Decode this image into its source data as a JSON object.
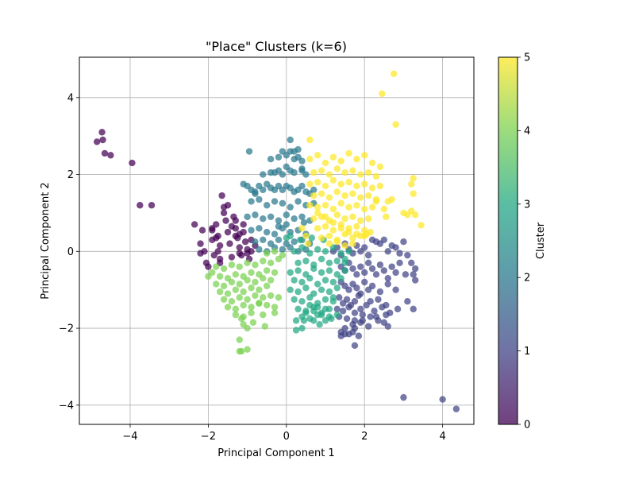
{
  "chart_data": {
    "type": "scatter",
    "title": "\"Place\" Clusters (k=6)",
    "xlabel": "Principal Component 1",
    "ylabel": "Principal Component 2",
    "xlim": [
      -5.3,
      4.8
    ],
    "ylim": [
      -4.5,
      5.05
    ],
    "x_ticks": [
      -4,
      -2,
      0,
      2,
      4
    ],
    "y_ticks": [
      -4,
      -2,
      0,
      2,
      4
    ],
    "grid": true,
    "colorbar": {
      "label": "Cluster",
      "range": [
        0,
        5
      ],
      "ticks": [
        0,
        1,
        2,
        3,
        4,
        5
      ],
      "colormap": "viridis"
    },
    "cluster_colors": [
      "#440154",
      "#414487",
      "#2a788e",
      "#22a884",
      "#7ad151",
      "#fde725"
    ],
    "series": [
      {
        "cluster": 0,
        "x": [
          -4.85,
          -4.72,
          -4.7,
          -4.65,
          -4.5,
          -3.95,
          -3.75,
          -3.45,
          -2.35,
          -2.2,
          -2.1,
          -2.05,
          -2.0,
          -2.2,
          -2.15,
          -1.9,
          -1.9,
          -1.85,
          -1.8,
          -1.75,
          -1.75,
          -1.7,
          -1.7,
          -1.65,
          -1.6,
          -1.55,
          -1.5,
          -1.45,
          -1.4,
          -1.35,
          -1.3,
          -1.25,
          -1.2,
          -1.15,
          -1.1,
          -1.05,
          -1.0,
          -0.95,
          -0.9,
          -0.8,
          -1.6,
          -1.5,
          -1.4,
          -1.3,
          -1.2,
          -1.1,
          -1.9,
          -1.8,
          -1.7,
          -1.3,
          -1.2,
          -1.0,
          -0.9
        ],
        "y": [
          2.85,
          3.1,
          2.9,
          2.55,
          2.5,
          2.3,
          1.2,
          1.2,
          0.7,
          0.2,
          0.0,
          -0.3,
          -0.4,
          -0.05,
          0.55,
          0.6,
          0.3,
          -0.1,
          0.7,
          0.4,
          0.0,
          -0.2,
          -0.3,
          1.45,
          1.0,
          0.8,
          0.5,
          0.2,
          -0.15,
          0.9,
          0.6,
          0.35,
          0.1,
          -0.1,
          0.5,
          0.25,
          0.05,
          -0.2,
          0.3,
          0.15,
          1.15,
          1.2,
          0.65,
          0.8,
          -0.05,
          0.7,
          0.55,
          0.35,
          0.15,
          0.4,
          0.45,
          -0.05,
          0.0
        ]
      },
      {
        "cluster": 1,
        "x": [
          1.2,
          1.3,
          1.4,
          1.5,
          1.6,
          1.7,
          1.8,
          1.9,
          2.0,
          2.1,
          2.2,
          2.3,
          2.4,
          2.5,
          2.6,
          2.7,
          2.8,
          2.9,
          3.0,
          3.1,
          3.2,
          3.3,
          1.4,
          1.5,
          1.6,
          1.7,
          1.8,
          1.9,
          2.0,
          2.1,
          2.2,
          2.3,
          2.4,
          2.5,
          2.6,
          2.7,
          2.8,
          2.9,
          1.4,
          1.5,
          1.6,
          1.7,
          1.8,
          1.9,
          2.0,
          2.1,
          2.2,
          2.4,
          2.6,
          2.8,
          1.35,
          1.45,
          1.55,
          1.65,
          1.75,
          1.85,
          2.15,
          2.35,
          2.55,
          1.3,
          1.45,
          1.6,
          1.75,
          1.9,
          2.05,
          2.25,
          2.45,
          2.65,
          2.85,
          1.35,
          1.55,
          1.75,
          1.95,
          2.15,
          2.35,
          2.55,
          1.5,
          1.7,
          1.9,
          2.1,
          2.3,
          2.5,
          1.4,
          1.6,
          1.85,
          2.6,
          3.05,
          3.1,
          3.25,
          3.3,
          3.25,
          1.4,
          1.75,
          1.95,
          1.75,
          1.7,
          1.5,
          3.0,
          4.0,
          4.35
        ],
        "y": [
          0.0,
          0.1,
          -0.1,
          0.2,
          0.05,
          -0.05,
          0.15,
          0.0,
          0.1,
          -0.1,
          0.3,
          0.25,
          0.2,
          0.3,
          0.0,
          0.15,
          0.1,
          -0.05,
          0.25,
          -0.1,
          -0.3,
          -0.45,
          -0.4,
          -0.5,
          -0.3,
          -0.45,
          -0.6,
          -0.4,
          -0.55,
          -0.3,
          -0.45,
          -0.6,
          -0.35,
          -0.5,
          -0.7,
          -0.4,
          -0.55,
          -0.3,
          -0.8,
          -0.9,
          -1.0,
          -0.85,
          -0.95,
          -1.1,
          -0.8,
          -1.0,
          -0.9,
          -1.05,
          -0.85,
          -1.0,
          -1.2,
          -1.35,
          -1.25,
          -1.4,
          -1.3,
          -1.15,
          -1.3,
          -1.25,
          -1.4,
          -1.5,
          -1.55,
          -1.45,
          -1.6,
          -1.5,
          -1.4,
          -1.55,
          -1.45,
          -1.6,
          -1.5,
          -1.7,
          -1.75,
          -1.8,
          -1.65,
          -1.7,
          -1.8,
          -1.65,
          -2.0,
          -1.9,
          -1.85,
          -1.95,
          -1.7,
          -1.85,
          -2.1,
          -2.15,
          -2.2,
          -1.95,
          -0.6,
          -1.3,
          -0.6,
          -0.75,
          -1.5,
          -2.2,
          -2.0,
          -1.8,
          -2.45,
          -2.1,
          -2.15,
          -3.8,
          -3.85,
          -4.1
        ]
      },
      {
        "cluster": 2,
        "x": [
          -1.1,
          -1.0,
          -0.9,
          -0.8,
          -0.7,
          -0.6,
          -0.5,
          -0.4,
          -0.3,
          -0.2,
          -0.1,
          0.0,
          0.1,
          0.2,
          0.3,
          0.4,
          0.5,
          0.6,
          0.7,
          -0.9,
          -0.7,
          -0.5,
          -0.3,
          -0.1,
          0.1,
          0.3,
          0.5,
          0.7,
          -1.0,
          -0.8,
          -0.6,
          -0.4,
          -0.2,
          0.0,
          0.2,
          0.4,
          0.6,
          -0.9,
          -0.7,
          -0.5,
          -0.3,
          -0.1,
          0.1,
          0.3,
          0.5,
          -0.8,
          -0.6,
          -0.4,
          -0.2,
          0.0,
          0.2,
          0.4,
          0.6,
          -0.7,
          -0.5,
          -0.3,
          -0.1,
          0.1,
          0.3,
          0.5,
          -0.6,
          -0.4,
          -0.2,
          0.0,
          0.2,
          0.4,
          -0.4,
          -0.2,
          0.0,
          0.2,
          0.4,
          -0.1,
          0.1,
          0.3,
          -0.3,
          -0.1,
          0.1,
          -0.95,
          0.1,
          0.2,
          0.3,
          0.4,
          0.5,
          -0.2,
          0.0,
          0.45,
          -0.8
        ],
        "y": [
          1.75,
          1.7,
          1.6,
          1.55,
          1.7,
          1.6,
          1.75,
          1.65,
          1.6,
          1.7,
          1.6,
          1.7,
          1.65,
          1.55,
          1.6,
          1.7,
          1.55,
          1.5,
          1.6,
          1.3,
          1.35,
          1.2,
          1.3,
          1.25,
          1.15,
          1.3,
          1.2,
          1.25,
          0.9,
          0.95,
          0.85,
          0.9,
          0.8,
          0.95,
          0.85,
          0.9,
          0.8,
          0.55,
          0.6,
          0.5,
          0.45,
          0.6,
          0.5,
          0.55,
          0.45,
          0.25,
          0.3,
          0.2,
          0.3,
          0.2,
          0.25,
          0.3,
          0.2,
          0.05,
          0.0,
          0.1,
          0.05,
          0.1,
          0.0,
          0.05,
          2.0,
          2.05,
          2.1,
          2.2,
          2.05,
          2.15,
          2.4,
          2.45,
          2.5,
          2.4,
          2.35,
          2.6,
          2.6,
          2.65,
          2.05,
          2.0,
          2.1,
          2.6,
          2.9,
          2.6,
          2.45,
          2.1,
          2.0,
          0.65,
          0.7,
          0.75,
          1.5
        ]
      },
      {
        "cluster": 3,
        "x": [
          0.2,
          0.4,
          0.6,
          0.8,
          1.0,
          1.2,
          1.4,
          1.6,
          0.3,
          0.5,
          0.7,
          0.9,
          1.1,
          1.3,
          1.5,
          0.1,
          0.3,
          0.5,
          0.7,
          0.9,
          1.1,
          1.3,
          1.5,
          0.2,
          0.4,
          0.6,
          0.8,
          1.0,
          1.2,
          1.4,
          0.1,
          0.3,
          0.5,
          0.7,
          0.9,
          1.1,
          1.3,
          0.2,
          0.4,
          0.6,
          0.8,
          1.0,
          1.2,
          0.3,
          0.5,
          0.7,
          0.9,
          1.1,
          0.4,
          0.6,
          0.8,
          1.0,
          0.5,
          0.7,
          0.9,
          1.1,
          0.6,
          0.8,
          1.0,
          0.0,
          0.1,
          0.35,
          0.65,
          0.95,
          0.25,
          0.45,
          0.25,
          0.4,
          1.15,
          0.85,
          1.2,
          1.5,
          0.7,
          1.3
        ],
        "y": [
          0.0,
          0.1,
          -0.05,
          0.05,
          0.0,
          0.1,
          -0.05,
          0.0,
          -0.3,
          -0.25,
          -0.35,
          -0.2,
          -0.3,
          -0.25,
          -0.3,
          -0.55,
          -0.5,
          -0.6,
          -0.45,
          -0.55,
          -0.5,
          -0.6,
          -0.5,
          -0.75,
          -0.8,
          -0.7,
          -0.85,
          -0.75,
          -0.8,
          -0.7,
          -1.0,
          -1.05,
          -0.95,
          -1.1,
          -1.0,
          -1.05,
          -0.95,
          -1.25,
          -1.3,
          -1.2,
          -1.35,
          -1.25,
          -1.3,
          -1.5,
          -1.55,
          -1.45,
          -1.6,
          -1.5,
          -1.7,
          -1.75,
          -1.65,
          -1.8,
          -1.6,
          -1.55,
          -1.65,
          -1.7,
          -1.4,
          -1.45,
          -1.5,
          0.35,
          0.4,
          0.3,
          0.35,
          0.3,
          -1.8,
          -1.8,
          -2.05,
          -2.0,
          -1.75,
          -1.9,
          -1.2,
          -0.2,
          -1.8,
          -1.65
        ]
      },
      {
        "cluster": 4,
        "x": [
          -1.8,
          -1.6,
          -1.4,
          -1.2,
          -1.0,
          -0.8,
          -0.6,
          -0.4,
          -0.2,
          -1.7,
          -1.5,
          -1.3,
          -1.1,
          -0.9,
          -0.7,
          -0.5,
          -0.3,
          -1.8,
          -1.6,
          -1.4,
          -1.2,
          -1.0,
          -0.8,
          -0.6,
          -0.4,
          -1.7,
          -1.5,
          -1.3,
          -1.1,
          -0.9,
          -0.7,
          -0.5,
          -1.6,
          -1.4,
          -1.2,
          -1.0,
          -0.8,
          -0.6,
          -1.5,
          -1.3,
          -1.1,
          -0.9,
          -0.7,
          -1.3,
          -1.1,
          -0.9,
          -0.6,
          -0.3,
          -0.7,
          -0.5,
          -0.4,
          -0.2,
          -0.5,
          -0.3,
          -0.1,
          -1.15,
          -1.2,
          -1.2,
          -1.15,
          -1.0,
          -1.0,
          -1.1,
          -0.3,
          -0.55,
          -0.85,
          -2.0,
          -1.9
        ],
        "y": [
          -0.4,
          -0.45,
          -0.35,
          -0.4,
          -0.3,
          -0.35,
          -0.25,
          -0.3,
          -0.2,
          -0.65,
          -0.7,
          -0.6,
          -0.65,
          -0.55,
          -0.6,
          -0.5,
          -0.55,
          -0.85,
          -0.9,
          -0.8,
          -0.85,
          -0.75,
          -0.8,
          -0.7,
          -0.75,
          -1.05,
          -1.1,
          -1.0,
          -1.05,
          -0.95,
          -1.0,
          -0.9,
          -1.25,
          -1.3,
          -1.2,
          -1.25,
          -1.15,
          -1.2,
          -1.45,
          -1.5,
          -1.4,
          -1.45,
          -1.35,
          -1.65,
          -1.7,
          -1.6,
          -1.65,
          -1.6,
          -1.35,
          -1.4,
          -1.15,
          -1.2,
          -0.05,
          0.0,
          -0.1,
          -1.75,
          -2.3,
          -2.6,
          -2.6,
          -2.55,
          -2.0,
          -1.9,
          -1.45,
          -1.95,
          -1.85,
          -0.65,
          -0.55
        ]
      },
      {
        "cluster": 5,
        "x": [
          0.6,
          0.8,
          1.0,
          1.2,
          1.4,
          1.6,
          1.8,
          2.0,
          2.2,
          2.4,
          0.7,
          0.9,
          1.1,
          1.3,
          1.5,
          1.7,
          1.9,
          2.1,
          2.3,
          0.6,
          0.8,
          1.0,
          1.2,
          1.4,
          1.6,
          1.8,
          2.0,
          2.2,
          2.4,
          0.7,
          0.9,
          1.1,
          1.3,
          1.5,
          1.7,
          1.9,
          2.1,
          2.3,
          0.8,
          1.0,
          1.2,
          1.4,
          1.6,
          1.8,
          2.0,
          2.2,
          0.7,
          0.9,
          1.1,
          1.3,
          1.5,
          1.7,
          1.9,
          2.1,
          0.8,
          1.0,
          1.2,
          1.4,
          1.6,
          1.8,
          2.0,
          0.9,
          1.1,
          1.3,
          1.5,
          1.7,
          1.9,
          1.1,
          1.3,
          1.5,
          1.7,
          0.6,
          0.8,
          1.0,
          1.2,
          1.4,
          1.6,
          1.8,
          2.0,
          0.4,
          0.5,
          0.6,
          2.5,
          2.55,
          2.3,
          2.6,
          2.7,
          3.0,
          3.1,
          3.25,
          3.2,
          3.25,
          3.2,
          3.3,
          3.45,
          2.75,
          2.8,
          2.45,
          2.15,
          2.05,
          0.55
        ],
        "y": [
          2.4,
          2.5,
          2.3,
          2.45,
          2.35,
          2.55,
          2.4,
          2.5,
          2.3,
          2.2,
          2.05,
          2.1,
          2.0,
          2.15,
          2.05,
          2.1,
          2.0,
          2.05,
          1.95,
          1.75,
          1.8,
          1.7,
          1.85,
          1.75,
          1.8,
          1.7,
          1.75,
          1.65,
          1.7,
          1.45,
          1.5,
          1.4,
          1.55,
          1.45,
          1.5,
          1.4,
          1.45,
          1.35,
          1.15,
          1.2,
          1.1,
          1.25,
          1.15,
          1.2,
          1.1,
          1.15,
          0.85,
          0.9,
          0.8,
          0.95,
          0.85,
          0.9,
          0.8,
          0.85,
          0.6,
          0.65,
          0.55,
          0.7,
          0.6,
          0.65,
          0.55,
          0.35,
          0.4,
          0.3,
          0.45,
          0.35,
          0.4,
          0.2,
          0.25,
          0.15,
          0.2,
          1.2,
          1.0,
          0.9,
          0.75,
          0.6,
          0.5,
          0.45,
          0.4,
          0.6,
          0.4,
          2.9,
          1.1,
          0.9,
          1.3,
          1.3,
          1.35,
          1.0,
          0.95,
          1.9,
          1.75,
          1.5,
          1.05,
          0.95,
          0.68,
          4.62,
          3.3,
          4.1,
          0.5,
          0.45,
          0.2
        ]
      }
    ]
  }
}
